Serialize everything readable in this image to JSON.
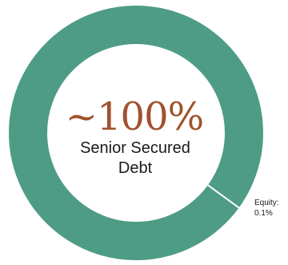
{
  "chart_data": {
    "type": "pie",
    "donut": true,
    "categories": [
      "Senior Secured Debt",
      "Equity"
    ],
    "values": [
      99.9,
      0.1
    ],
    "center_value": "~100%",
    "center_label_lines": [
      "Senior Secured",
      "Debt"
    ],
    "slice_label_lines": [
      "Equity:",
      "0.1%"
    ]
  },
  "colors": {
    "ring": "#4e9c85",
    "separator": "#ffffff",
    "accent_text": "#a0522d"
  }
}
